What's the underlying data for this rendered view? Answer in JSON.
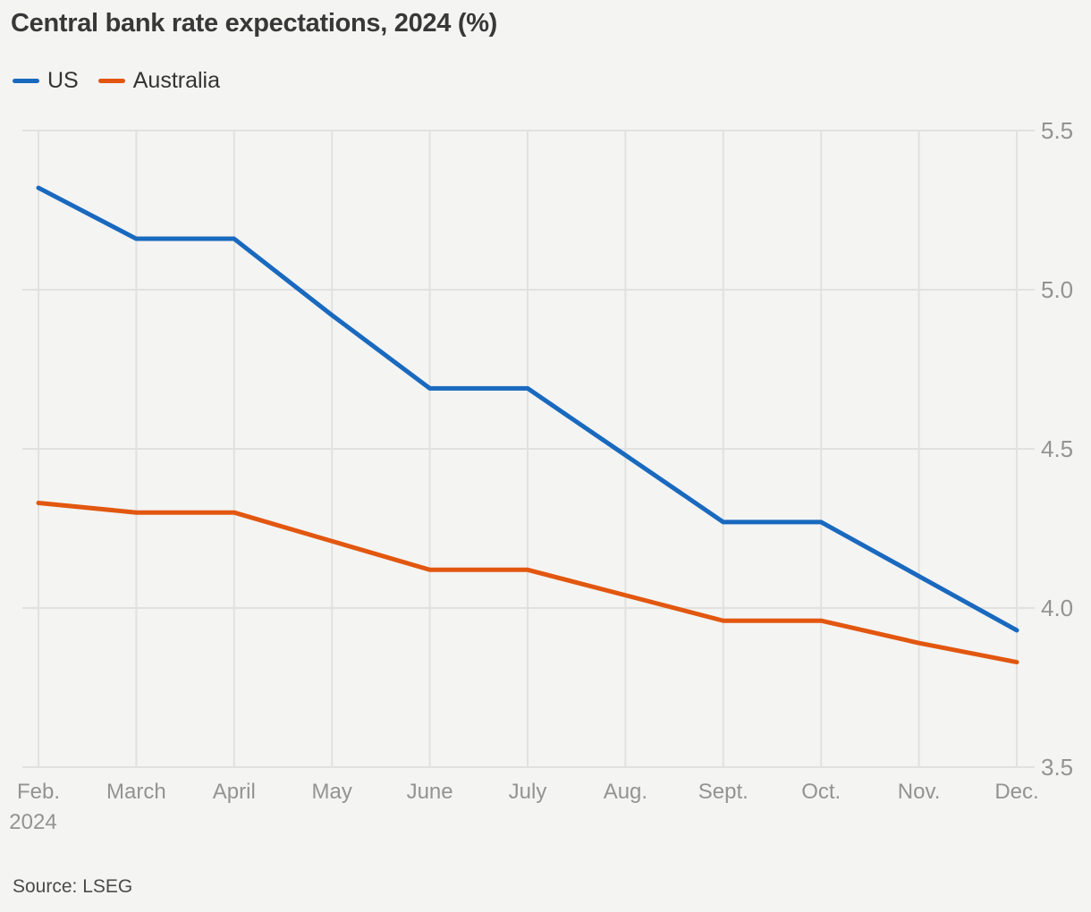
{
  "title": "Central bank rate expectations, 2024 (%)",
  "legend": [
    {
      "label": "US",
      "color": "#1969be"
    },
    {
      "label": "Australia",
      "color": "#e2570f"
    }
  ],
  "source": "Source: LSEG",
  "colors": {
    "background": "#f4f4f3",
    "grid": "#e1e1df",
    "axis_label": "#939393",
    "title_text": "#383838",
    "legend_text": "#333333",
    "source_text": "#4b4b4b"
  },
  "chart_data": {
    "type": "line",
    "title": "Central bank rate expectations, 2024 (%)",
    "categories": [
      "Feb.",
      "March",
      "April",
      "May",
      "June",
      "July",
      "Aug.",
      "Sept.",
      "Oct.",
      "Nov.",
      "Dec."
    ],
    "x_first_label_line2": "2024",
    "series": [
      {
        "name": "US",
        "color": "#1969be",
        "values": [
          5.32,
          5.16,
          5.16,
          4.92,
          4.69,
          4.69,
          4.48,
          4.27,
          4.27,
          4.1,
          3.93
        ]
      },
      {
        "name": "Australia",
        "color": "#e2570f",
        "values": [
          4.33,
          4.3,
          4.3,
          4.21,
          4.12,
          4.12,
          4.04,
          3.96,
          3.96,
          3.89,
          3.83
        ]
      }
    ],
    "xlabel": "",
    "ylabel": "",
    "ylim": [
      3.5,
      5.5
    ],
    "yticks": [
      "5.5",
      "5.0",
      "4.5",
      "4.0",
      "3.5"
    ],
    "grid": true,
    "legend_position": "top-left",
    "y_axis_side": "right"
  }
}
